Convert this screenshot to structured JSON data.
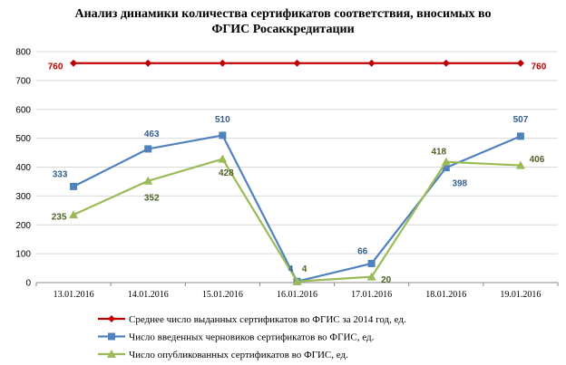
{
  "chart_data": {
    "type": "line",
    "title_lines": [
      "Анализ динамики количества сертификатов соответствия, вносимых во",
      "ФГИС Росаккредитации"
    ],
    "xlabel": "",
    "ylabel": "",
    "categories": [
      "13.01.2016",
      "14.01.2016",
      "15.01.2016",
      "16.01.2016",
      "17.01.2016",
      "18.01.2016",
      "19.01.2016"
    ],
    "y_ticks": [
      "0",
      "100",
      "200",
      "300",
      "400",
      "500",
      "600",
      "700",
      "800"
    ],
    "ylim": [
      0,
      800
    ],
    "grid": "horizontal",
    "legend_position": "bottom",
    "series": [
      {
        "name": "Среднее число выданных сертификатов во ФГИС за 2014 год, ед.",
        "values": [
          760,
          760,
          760,
          760,
          760,
          760,
          760
        ],
        "labels": [
          "760",
          "",
          "",
          "",
          "",
          "",
          "760"
        ],
        "color": "#c00000",
        "label_color": "#c00000",
        "marker": "diamond"
      },
      {
        "name": "Число введенных черновиков сертификатов во ФГИС, ед.",
        "values": [
          333,
          463,
          510,
          4,
          66,
          398,
          507
        ],
        "labels": [
          "333",
          "463",
          "510",
          "4",
          "66",
          "398",
          "507"
        ],
        "color": "#4f81bd",
        "label_color": "#376092",
        "marker": "square"
      },
      {
        "name": "Число опубликованных сертификатов во ФГИС, ед.",
        "values": [
          235,
          352,
          428,
          4,
          20,
          418,
          406
        ],
        "labels": [
          "235",
          "352",
          "428",
          "4",
          "20",
          "418",
          "406"
        ],
        "color": "#9bbb59",
        "label_color": "#4f6228",
        "marker": "triangle"
      }
    ]
  }
}
